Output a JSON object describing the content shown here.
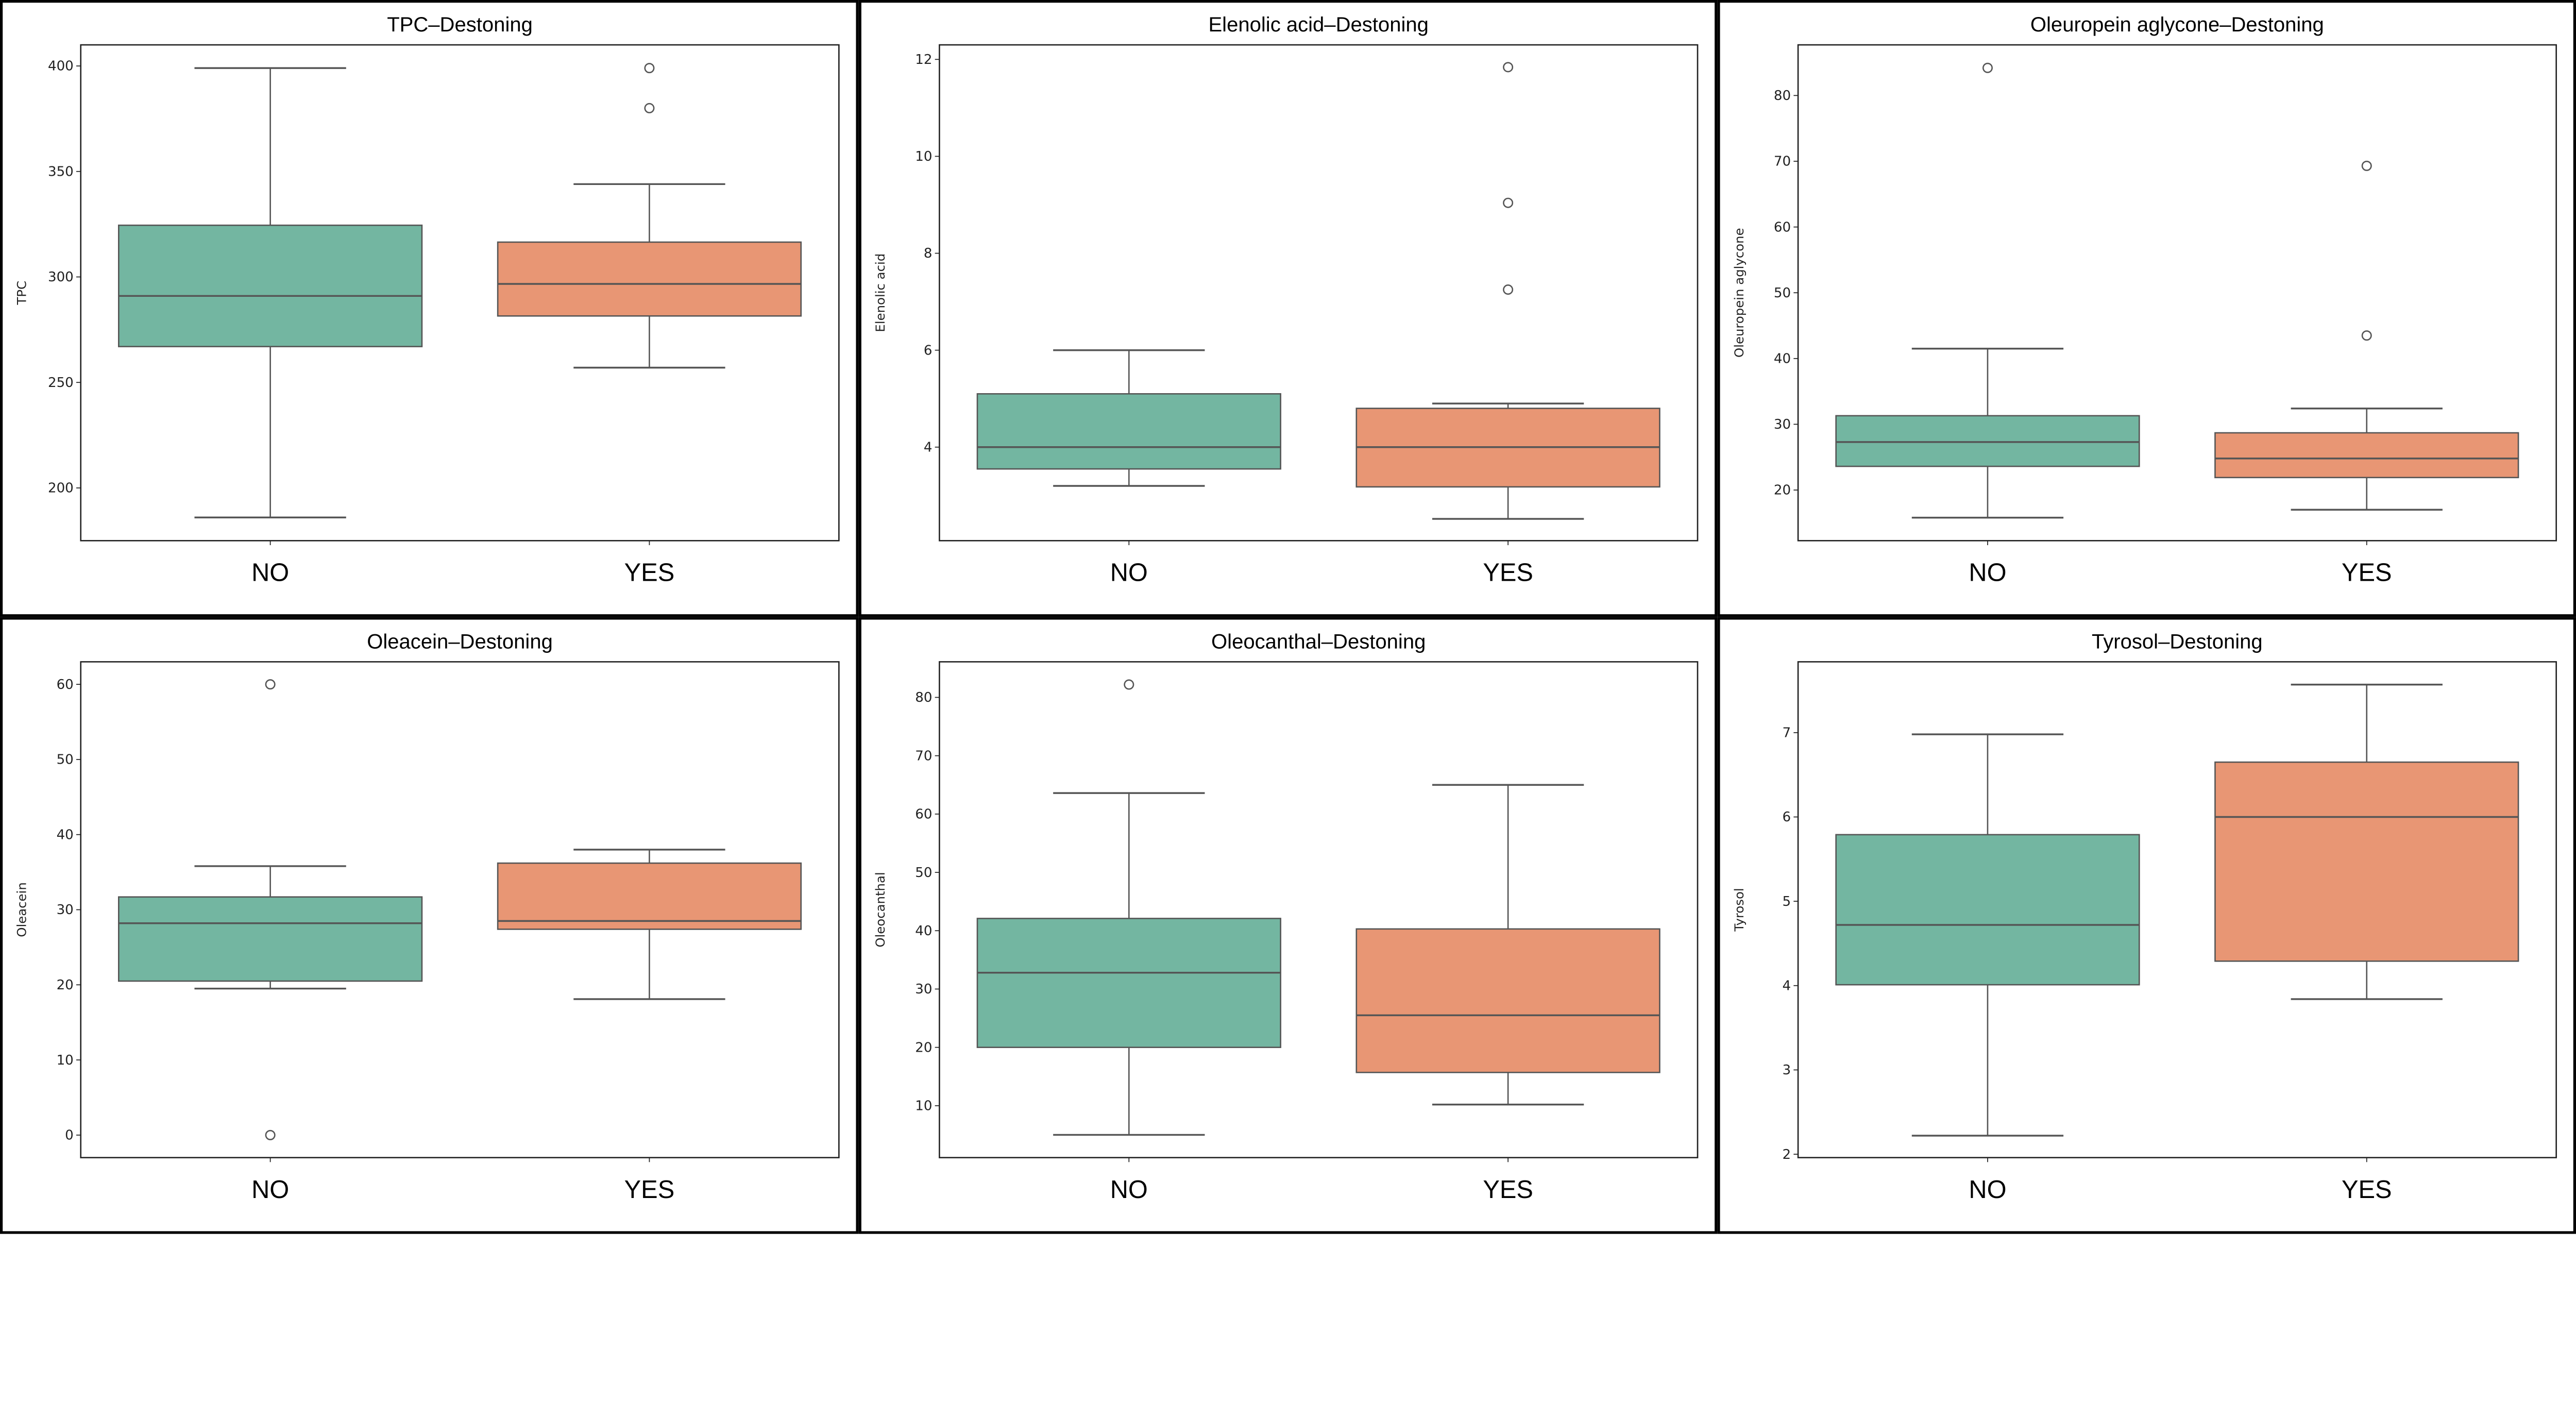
{
  "colors": {
    "NO": "#73b6a1",
    "YES": "#e89674",
    "line": "#555555",
    "frame": "#000000"
  },
  "chart_data": [
    {
      "type": "box",
      "title": "TPC–Destoning",
      "xlabel": "",
      "ylabel": "TPC",
      "categories": [
        "NO",
        "YES"
      ],
      "ylim": [
        175,
        410
      ],
      "yticks": [
        200,
        250,
        300,
        350,
        400
      ],
      "series": [
        {
          "category": "NO",
          "whisker_low": 186,
          "q1": 267,
          "median": 291,
          "q3": 324.5,
          "whisker_high": 399,
          "outliers": []
        },
        {
          "category": "YES",
          "whisker_low": 257,
          "q1": 281.5,
          "median": 296.7,
          "q3": 316.5,
          "whisker_high": 344,
          "outliers": [
            399,
            380
          ]
        }
      ]
    },
    {
      "type": "box",
      "title": "Elenolic acid–Destoning",
      "xlabel": "",
      "ylabel": "Elenolic acid",
      "categories": [
        "NO",
        "YES"
      ],
      "ylim": [
        2.07,
        12.3
      ],
      "yticks": [
        4,
        6,
        8,
        10,
        12
      ],
      "series": [
        {
          "category": "NO",
          "whisker_low": 3.2,
          "q1": 3.55,
          "median": 4.0,
          "q3": 5.1,
          "whisker_high": 6.0,
          "outliers": []
        },
        {
          "category": "YES",
          "whisker_low": 2.52,
          "q1": 3.18,
          "median": 4.0,
          "q3": 4.8,
          "whisker_high": 4.9,
          "outliers": [
            11.84,
            9.04,
            7.25
          ]
        }
      ]
    },
    {
      "type": "box",
      "title": "Oleuropein aglycone–Destoning",
      "xlabel": "",
      "ylabel": "Oleuropein aglycone",
      "categories": [
        "NO",
        "YES"
      ],
      "ylim": [
        12.3,
        87.7
      ],
      "yticks": [
        20,
        30,
        40,
        50,
        60,
        70,
        80
      ],
      "series": [
        {
          "category": "NO",
          "whisker_low": 15.8,
          "q1": 23.6,
          "median": 27.3,
          "q3": 31.3,
          "whisker_high": 41.5,
          "outliers": [
            84.2
          ]
        },
        {
          "category": "YES",
          "whisker_low": 17.0,
          "q1": 21.9,
          "median": 24.8,
          "q3": 28.7,
          "whisker_high": 32.4,
          "outliers": [
            69.3,
            43.5
          ]
        }
      ]
    },
    {
      "type": "box",
      "title": "Oleacein–Destoning",
      "xlabel": "",
      "ylabel": "Oleacein",
      "categories": [
        "NO",
        "YES"
      ],
      "ylim": [
        -3,
        63
      ],
      "yticks": [
        0,
        10,
        20,
        30,
        40,
        50,
        60
      ],
      "series": [
        {
          "category": "NO",
          "whisker_low": 19.5,
          "q1": 20.5,
          "median": 28.2,
          "q3": 31.7,
          "whisker_high": 35.8,
          "outliers": [
            60,
            0
          ]
        },
        {
          "category": "YES",
          "whisker_low": 18.1,
          "q1": 27.4,
          "median": 28.5,
          "q3": 36.2,
          "whisker_high": 38.0,
          "outliers": []
        }
      ]
    },
    {
      "type": "box",
      "title": "Oleocanthal–Destoning",
      "xlabel": "",
      "ylabel": "Oleocanthal",
      "categories": [
        "NO",
        "YES"
      ],
      "ylim": [
        1.1,
        86.1
      ],
      "yticks": [
        10,
        20,
        30,
        40,
        50,
        60,
        70,
        80
      ],
      "series": [
        {
          "category": "NO",
          "whisker_low": 5.0,
          "q1": 20.0,
          "median": 32.8,
          "q3": 42.1,
          "whisker_high": 63.6,
          "outliers": [
            82.2
          ]
        },
        {
          "category": "YES",
          "whisker_low": 10.2,
          "q1": 15.7,
          "median": 25.5,
          "q3": 40.3,
          "whisker_high": 65.0,
          "outliers": []
        }
      ]
    },
    {
      "type": "box",
      "title": "Tyrosol–Destoning",
      "xlabel": "",
      "ylabel": "Tyrosol",
      "categories": [
        "NO",
        "YES"
      ],
      "ylim": [
        1.96,
        7.84
      ],
      "yticks": [
        2,
        3,
        4,
        5,
        6,
        7
      ],
      "series": [
        {
          "category": "NO",
          "whisker_low": 2.22,
          "q1": 4.01,
          "median": 4.72,
          "q3": 5.79,
          "whisker_high": 6.98,
          "outliers": []
        },
        {
          "category": "YES",
          "whisker_low": 3.84,
          "q1": 4.29,
          "median": 6.0,
          "q3": 6.65,
          "whisker_high": 7.57,
          "outliers": []
        }
      ]
    }
  ]
}
